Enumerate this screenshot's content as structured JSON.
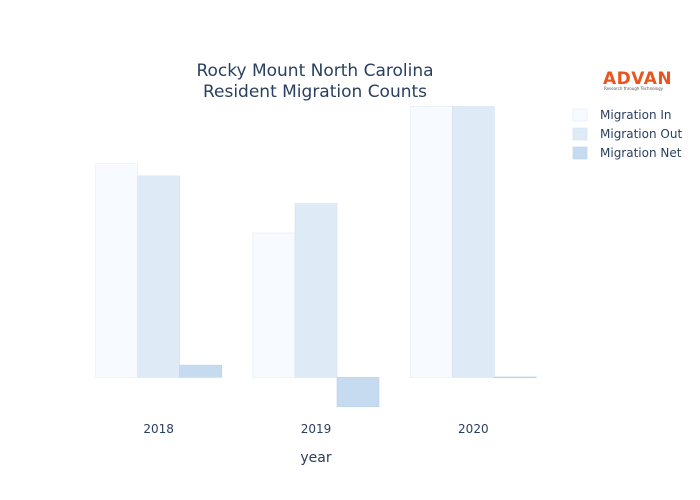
{
  "logo": {
    "brand": "ADVAN",
    "tagline": "Research through Technology",
    "color": "#e8551f"
  },
  "chart_data": {
    "type": "bar",
    "title": [
      "Rocky Mount North Carolina",
      "Resident Migration Counts"
    ],
    "xlabel": "year",
    "ylabel": "",
    "categories": [
      "2018",
      "2019",
      "2020"
    ],
    "series": [
      {
        "name": "Migration In",
        "values": [
          2620,
          1770,
          3320
        ],
        "color": "#f7fbff",
        "stroke": "#e3ecf6"
      },
      {
        "name": "Migration Out",
        "values": [
          2470,
          2130,
          3320
        ],
        "color": "#deebf7",
        "stroke": "#d2e2f2"
      },
      {
        "name": "Migration Net",
        "values": [
          150,
          -360,
          0
        ],
        "color": "#c6dbef",
        "stroke": "#b9d1ea"
      }
    ],
    "ylim": [
      -400,
      3400
    ],
    "grid": false,
    "legend": "top-right"
  }
}
